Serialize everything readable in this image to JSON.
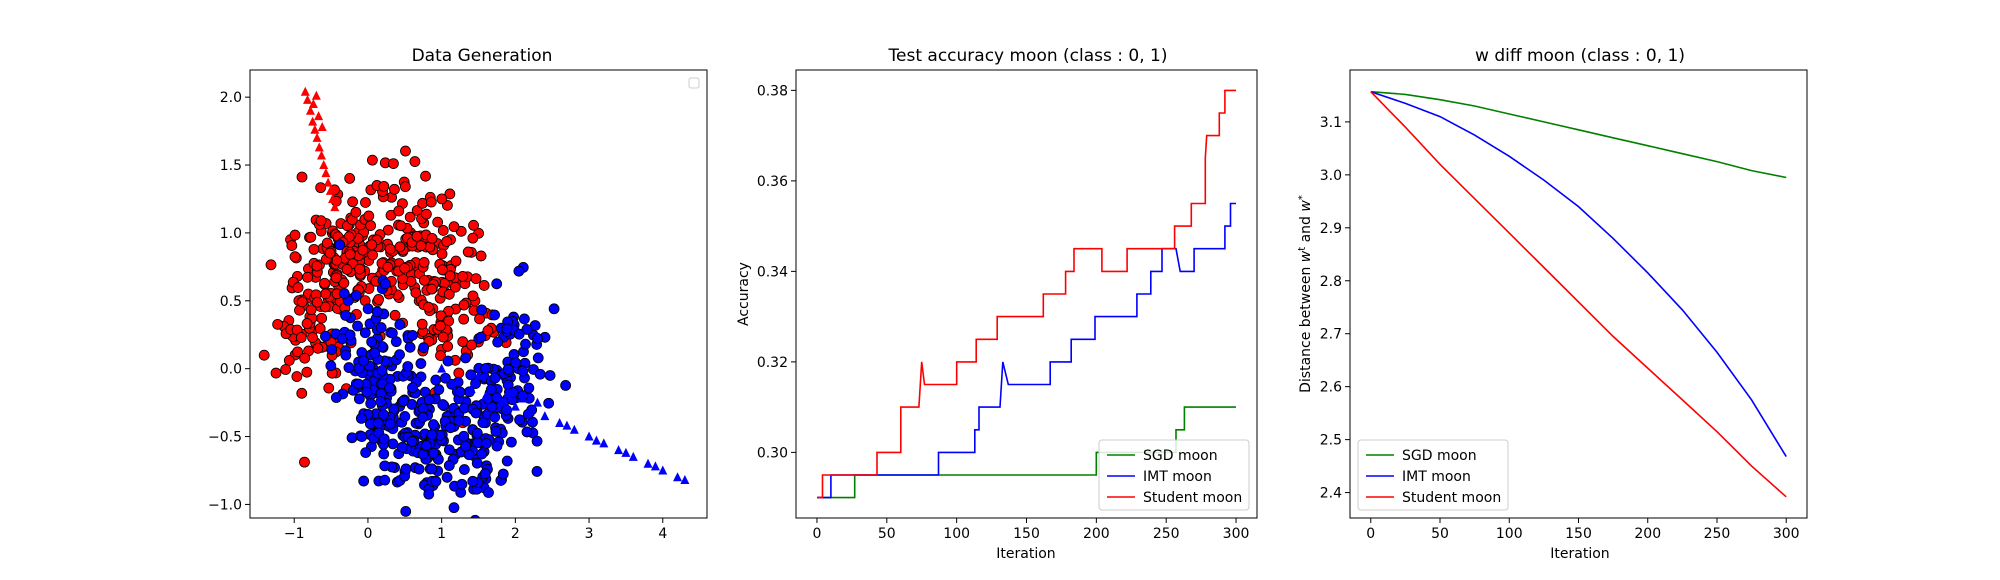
{
  "chart_data": [
    {
      "type": "scatter",
      "title": "Data Generation",
      "xlabel": "",
      "ylabel": "",
      "xlim": [
        -1.6,
        4.6
      ],
      "ylim": [
        -1.1,
        2.2
      ],
      "xticks": [
        -1,
        0,
        1,
        2,
        3,
        4
      ],
      "yticks": [
        -1.0,
        -0.5,
        0.0,
        0.5,
        1.0,
        1.5,
        2.0
      ],
      "tick_labels_x": [
        "−1",
        "0",
        "1",
        "2",
        "3",
        "4"
      ],
      "tick_labels_y": [
        "−1.0",
        "−0.5",
        "0.0",
        "0.5",
        "1.0",
        "1.5",
        "2.0"
      ],
      "legend": "top-right (empty)",
      "series": [
        {
          "color": "#ff0000",
          "marker": "circle",
          "description_cloud": {
            "center": [
              0.2,
              0.7
            ],
            "spread": [
              0.8,
              0.4
            ]
          }
        },
        {
          "color": "#0000ff",
          "marker": "circle",
          "description_cloud": {
            "center": [
              1.0,
              -0.1
            ],
            "spread": [
              0.8,
              0.4
            ]
          }
        },
        {
          "color": "#ff0000",
          "marker": "triangle",
          "points": [
            [
              -0.85,
              2.04
            ],
            [
              -0.82,
              1.98
            ],
            [
              -0.78,
              1.9
            ],
            [
              -0.75,
              1.82
            ],
            [
              -0.72,
              1.76
            ],
            [
              -0.69,
              1.7
            ],
            [
              -0.66,
              1.63
            ],
            [
              -0.63,
              1.57
            ],
            [
              -0.6,
              1.5
            ],
            [
              -0.57,
              1.44
            ],
            [
              -0.54,
              1.37
            ],
            [
              -0.51,
              1.31
            ],
            [
              -0.48,
              1.25
            ],
            [
              -0.45,
              1.19
            ],
            [
              -0.7,
              2.01
            ],
            [
              -0.74,
              1.95
            ],
            [
              -0.67,
              1.86
            ],
            [
              -0.62,
              1.78
            ]
          ]
        },
        {
          "color": "#0000ff",
          "marker": "triangle",
          "points": [
            [
              1.0,
              0.0
            ],
            [
              1.2,
              -0.1
            ],
            [
              1.4,
              -0.15
            ],
            [
              1.6,
              -0.2
            ],
            [
              1.8,
              -0.25
            ],
            [
              2.0,
              -0.28
            ],
            [
              2.2,
              -0.32
            ],
            [
              2.4,
              -0.35
            ],
            [
              2.6,
              -0.4
            ],
            [
              2.8,
              -0.45
            ],
            [
              3.0,
              -0.5
            ],
            [
              3.2,
              -0.55
            ],
            [
              3.4,
              -0.6
            ],
            [
              3.6,
              -0.65
            ],
            [
              3.8,
              -0.7
            ],
            [
              4.0,
              -0.75
            ],
            [
              4.2,
              -0.8
            ],
            [
              4.3,
              -0.82
            ],
            [
              1.5,
              -0.05
            ],
            [
              1.9,
              -0.18
            ],
            [
              2.1,
              -0.22
            ],
            [
              2.3,
              -0.25
            ],
            [
              2.7,
              -0.42
            ],
            [
              3.1,
              -0.53
            ],
            [
              3.5,
              -0.62
            ],
            [
              3.9,
              -0.72
            ]
          ]
        }
      ]
    },
    {
      "type": "line",
      "title": "Test accuracy moon (class : 0, 1)",
      "xlabel": "Iteration",
      "ylabel": "Accuracy",
      "xlim": [
        -15,
        315
      ],
      "ylim": [
        0.2855,
        0.3845
      ],
      "xticks": [
        0,
        50,
        100,
        150,
        200,
        250,
        300
      ],
      "yticks": [
        0.3,
        0.32,
        0.34,
        0.36,
        0.38
      ],
      "tick_labels_x": [
        "0",
        "50",
        "100",
        "150",
        "200",
        "250",
        "300"
      ],
      "tick_labels_y": [
        "0.30",
        "0.32",
        "0.34",
        "0.36",
        "0.38"
      ],
      "legend": "bottom-right",
      "series": [
        {
          "name": "SGD moon",
          "color": "#008000",
          "points": [
            [
              0,
              0.29
            ],
            [
              27,
              0.29
            ],
            [
              27,
              0.295
            ],
            [
              200,
              0.295
            ],
            [
              200,
              0.3
            ],
            [
              257,
              0.3
            ],
            [
              257,
              0.305
            ],
            [
              263,
              0.305
            ],
            [
              263,
              0.31
            ],
            [
              300,
              0.31
            ]
          ]
        },
        {
          "name": "IMT moon",
          "color": "#0000ff",
          "points": [
            [
              0,
              0.29
            ],
            [
              10,
              0.29
            ],
            [
              10,
              0.295
            ],
            [
              87,
              0.295
            ],
            [
              87,
              0.3
            ],
            [
              113,
              0.3
            ],
            [
              113,
              0.305
            ],
            [
              116,
              0.305
            ],
            [
              116,
              0.31
            ],
            [
              131,
              0.31
            ],
            [
              133,
              0.32
            ],
            [
              137,
              0.315
            ],
            [
              167,
              0.315
            ],
            [
              167,
              0.32
            ],
            [
              182,
              0.32
            ],
            [
              182,
              0.325
            ],
            [
              199,
              0.325
            ],
            [
              199,
              0.33
            ],
            [
              229,
              0.33
            ],
            [
              229,
              0.335
            ],
            [
              239,
              0.335
            ],
            [
              239,
              0.34
            ],
            [
              247,
              0.34
            ],
            [
              247,
              0.345
            ],
            [
              257,
              0.345
            ],
            [
              260,
              0.34
            ],
            [
              270,
              0.34
            ],
            [
              270,
              0.345
            ],
            [
              292,
              0.345
            ],
            [
              292,
              0.35
            ],
            [
              296,
              0.35
            ],
            [
              296,
              0.355
            ],
            [
              300,
              0.355
            ]
          ]
        },
        {
          "name": "Student moon",
          "color": "#ff0000",
          "points": [
            [
              0,
              0.29
            ],
            [
              4,
              0.29
            ],
            [
              4,
              0.295
            ],
            [
              43,
              0.295
            ],
            [
              43,
              0.3
            ],
            [
              60,
              0.3
            ],
            [
              60,
              0.31
            ],
            [
              73,
              0.31
            ],
            [
              75,
              0.32
            ],
            [
              77,
              0.315
            ],
            [
              100,
              0.315
            ],
            [
              100,
              0.32
            ],
            [
              114,
              0.32
            ],
            [
              114,
              0.325
            ],
            [
              129,
              0.325
            ],
            [
              129,
              0.33
            ],
            [
              162,
              0.33
            ],
            [
              162,
              0.335
            ],
            [
              178,
              0.335
            ],
            [
              178,
              0.34
            ],
            [
              184,
              0.34
            ],
            [
              184,
              0.345
            ],
            [
              204,
              0.345
            ],
            [
              204,
              0.34
            ],
            [
              222,
              0.34
            ],
            [
              222,
              0.345
            ],
            [
              256,
              0.345
            ],
            [
              256,
              0.35
            ],
            [
              268,
              0.35
            ],
            [
              268,
              0.355
            ],
            [
              278,
              0.355
            ],
            [
              278,
              0.365
            ],
            [
              279,
              0.37
            ],
            [
              288,
              0.37
            ],
            [
              288,
              0.375
            ],
            [
              292,
              0.375
            ],
            [
              292,
              0.38
            ],
            [
              300,
              0.38
            ]
          ]
        }
      ]
    },
    {
      "type": "line",
      "title": "w diff moon (class : 0, 1)",
      "xlabel": "Iteration",
      "ylabel": "Distance between w^t and w^*",
      "ylabel_parts": [
        "Distance between ",
        "w",
        "t",
        " and ",
        "w",
        "*"
      ],
      "xlim": [
        -15,
        315
      ],
      "ylim": [
        2.352,
        3.198
      ],
      "xticks": [
        0,
        50,
        100,
        150,
        200,
        250,
        300
      ],
      "yticks": [
        2.4,
        2.5,
        2.6,
        2.7,
        2.8,
        2.9,
        3.0,
        3.1
      ],
      "tick_labels_x": [
        "0",
        "50",
        "100",
        "150",
        "200",
        "250",
        "300"
      ],
      "tick_labels_y": [
        "2.4",
        "2.5",
        "2.6",
        "2.7",
        "2.8",
        "2.9",
        "3.0",
        "3.1"
      ],
      "legend": "bottom-left",
      "series": [
        {
          "name": "SGD moon",
          "color": "#008000",
          "points": [
            [
              0,
              3.157
            ],
            [
              25,
              3.152
            ],
            [
              50,
              3.142
            ],
            [
              75,
              3.13
            ],
            [
              100,
              3.115
            ],
            [
              125,
              3.1
            ],
            [
              150,
              3.085
            ],
            [
              175,
              3.07
            ],
            [
              200,
              3.055
            ],
            [
              225,
              3.04
            ],
            [
              250,
              3.025
            ],
            [
              275,
              3.008
            ],
            [
              300,
              2.995
            ]
          ]
        },
        {
          "name": "IMT moon",
          "color": "#0000ff",
          "points": [
            [
              0,
              3.157
            ],
            [
              25,
              3.135
            ],
            [
              50,
              3.11
            ],
            [
              75,
              3.075
            ],
            [
              100,
              3.035
            ],
            [
              125,
              2.99
            ],
            [
              150,
              2.94
            ],
            [
              175,
              2.88
            ],
            [
              200,
              2.815
            ],
            [
              225,
              2.745
            ],
            [
              250,
              2.665
            ],
            [
              275,
              2.575
            ],
            [
              300,
              2.468
            ]
          ]
        },
        {
          "name": "Student moon",
          "color": "#ff0000",
          "points": [
            [
              0,
              3.157
            ],
            [
              25,
              3.09
            ],
            [
              50,
              3.02
            ],
            [
              75,
              2.955
            ],
            [
              100,
              2.89
            ],
            [
              125,
              2.825
            ],
            [
              150,
              2.76
            ],
            [
              175,
              2.695
            ],
            [
              200,
              2.635
            ],
            [
              225,
              2.575
            ],
            [
              250,
              2.515
            ],
            [
              275,
              2.45
            ],
            [
              300,
              2.392
            ]
          ]
        }
      ]
    }
  ]
}
